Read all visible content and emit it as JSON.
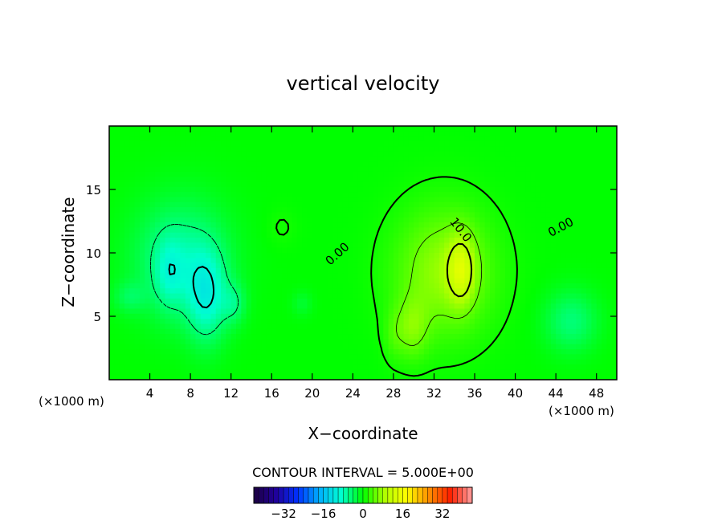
{
  "chart_data": {
    "type": "heatmap",
    "title": "vertical velocity",
    "xlabel": "X−coordinate",
    "ylabel": "Z−coordinate",
    "x_unit_left": "(×1000 m)",
    "x_unit_right": "(×1000 m)",
    "xlim": [
      0,
      50
    ],
    "ylim": [
      0,
      20
    ],
    "x_ticks": [
      4,
      8,
      12,
      16,
      20,
      24,
      28,
      32,
      36,
      40,
      44,
      48
    ],
    "x_tick_labels": [
      "4",
      "8",
      "12",
      "16",
      "20",
      "24",
      "28",
      "32",
      "36",
      "40",
      "44",
      "48"
    ],
    "y_ticks": [
      5,
      10,
      15
    ],
    "y_tick_labels": [
      "5",
      "10",
      "15"
    ],
    "contour_interval_text": "CONTOUR INTERVAL = 5.000E+00",
    "contour_labels": [
      {
        "text": "0.00",
        "x": 22.5,
        "y": 9.9,
        "angle": -42
      },
      {
        "text": "10.0",
        "x": 34.6,
        "y": 11.8,
        "angle": 52
      },
      {
        "text": "0.00",
        "x": 44.5,
        "y": 12.0,
        "angle": -28
      }
    ],
    "colorbar": {
      "range": [
        -44,
        44
      ],
      "tick_values": [
        -32,
        -16,
        0,
        16,
        32
      ],
      "tick_labels": [
        "−32",
        "−16",
        "0",
        "16",
        "32"
      ],
      "colors": [
        "#1c0040",
        "#20009a",
        "#0030ff",
        "#00b0ff",
        "#00ffd0",
        "#00ff00",
        "#b0ff00",
        "#ffff00",
        "#ff9000",
        "#ff2000",
        "#ffa0a0"
      ]
    },
    "field": {
      "background": 0.0,
      "features": [
        {
          "x": 7.0,
          "y": 9.5,
          "sx": 4.6,
          "sy": 4.6,
          "amp": -6.5
        },
        {
          "x": 9.6,
          "y": 6.5,
          "sx": 2.0,
          "sy": 3.6,
          "amp": -8.0
        },
        {
          "x": 5.9,
          "y": 8.3,
          "sx": 1.4,
          "sy": 2.8,
          "amp": -4.0
        },
        {
          "x": 12.3,
          "y": 6.0,
          "sx": 1.2,
          "sy": 1.6,
          "amp": -4.0
        },
        {
          "x": 2.0,
          "y": 6.5,
          "sx": 1.6,
          "sy": 1.2,
          "amp": -3.0
        },
        {
          "x": 45.5,
          "y": 4.6,
          "sx": 2.6,
          "sy": 2.4,
          "amp": -5.0
        },
        {
          "x": 19.0,
          "y": 6.0,
          "sx": 1.0,
          "sy": 1.0,
          "amp": -2.0
        },
        {
          "x": 33.0,
          "y": 8.5,
          "sx": 4.8,
          "sy": 5.0,
          "amp": 7.5
        },
        {
          "x": 34.7,
          "y": 8.7,
          "sx": 1.3,
          "sy": 2.7,
          "amp": 8.0
        },
        {
          "x": 29.8,
          "y": 4.0,
          "sx": 1.6,
          "sy": 2.4,
          "amp": 5.0
        },
        {
          "x": 28.0,
          "y": 3.5,
          "sx": 1.0,
          "sy": 2.0,
          "amp": 2.0
        },
        {
          "x": 17.0,
          "y": 12.0,
          "sx": 1.5,
          "sy": 1.5,
          "amp": 1.0
        }
      ]
    }
  }
}
